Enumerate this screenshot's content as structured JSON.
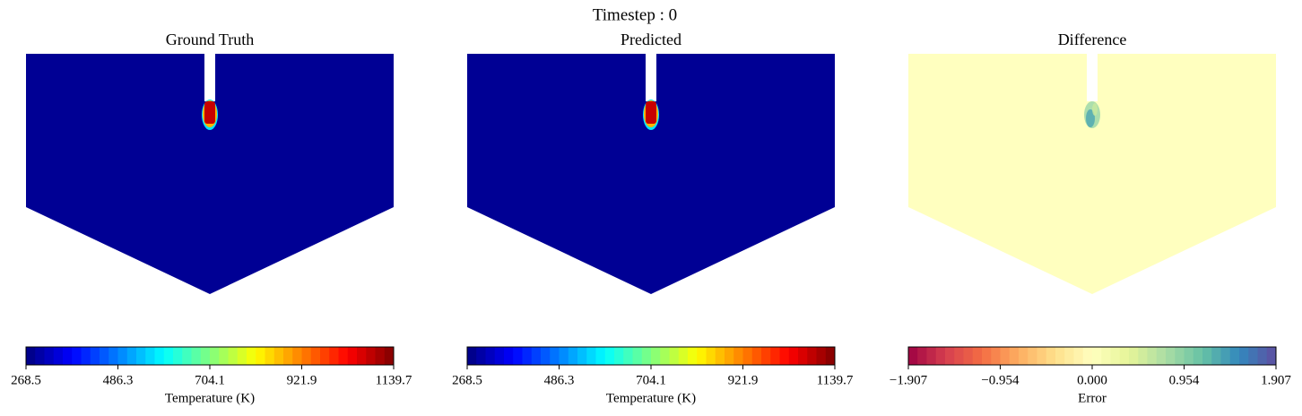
{
  "suptitle": "Timestep : 0",
  "chart_data": [
    {
      "type": "heatmap",
      "title": "Ground Truth",
      "colormap": "jet",
      "xlabel": "Temperature (K)",
      "xlim": [
        268.5,
        1139.7
      ],
      "xticks": [
        268.5,
        486.3,
        704.1,
        921.9,
        1139.7
      ]
    },
    {
      "type": "heatmap",
      "title": "Predicted",
      "colormap": "jet",
      "xlabel": "Temperature (K)",
      "xlim": [
        268.5,
        1139.7
      ],
      "xticks": [
        268.5,
        486.3,
        704.1,
        921.9,
        1139.7
      ]
    },
    {
      "type": "heatmap",
      "title": "Difference",
      "colormap": "Spectral",
      "xlabel": "Error",
      "xlim": [
        -1.907,
        1.907
      ],
      "xticks": [
        {
          "value": -1.907,
          "label": "−1.907"
        },
        {
          "value": -0.954,
          "label": "−0.954"
        },
        {
          "value": 0,
          "label": "0.000"
        },
        0.954,
        1.907
      ]
    }
  ]
}
